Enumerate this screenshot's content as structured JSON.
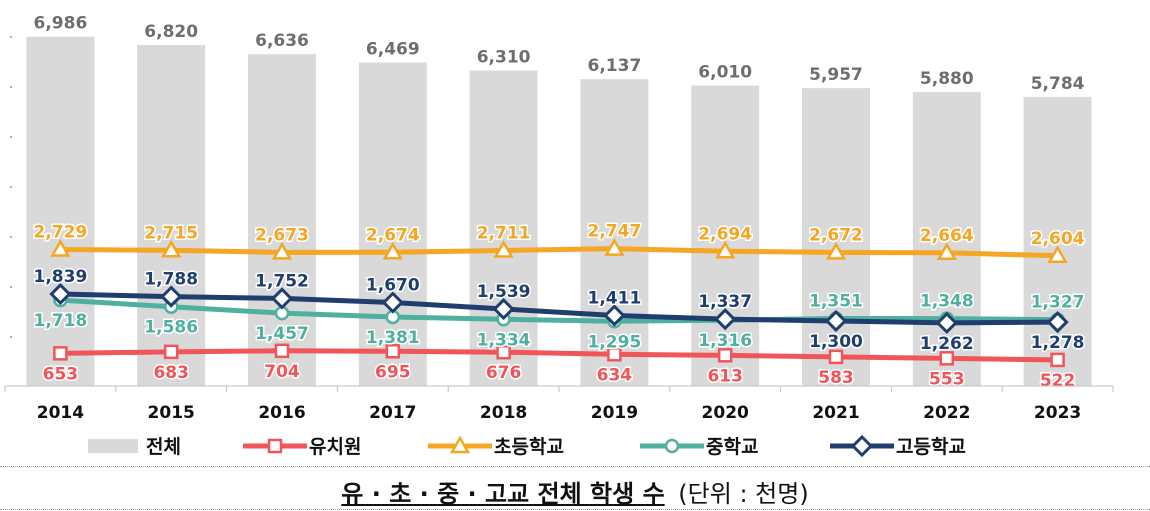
{
  "chart_data": {
    "type": "bar",
    "categories": [
      "2014",
      "2015",
      "2016",
      "2017",
      "2018",
      "2019",
      "2020",
      "2021",
      "2022",
      "2023"
    ],
    "bar_series": {
      "name": "전체",
      "values": [
        6986,
        6820,
        6636,
        6469,
        6310,
        6137,
        6010,
        5957,
        5880,
        5784
      ],
      "labels": [
        "6,986",
        "6,820",
        "6,636",
        "6,469",
        "6,310",
        "6,137",
        "6,010",
        "5,957",
        "5,880",
        "5,784"
      ],
      "color": "#d9d9d9",
      "label_color": "#6e6e6e"
    },
    "line_series": [
      {
        "name": "유치원",
        "values": [
          653,
          683,
          704,
          695,
          676,
          634,
          613,
          583,
          553,
          522
        ],
        "labels": [
          "653",
          "683",
          "704",
          "695",
          "676",
          "634",
          "613",
          "583",
          "553",
          "522"
        ],
        "color": "#f0555a",
        "marker": "square",
        "label_position": "below"
      },
      {
        "name": "초등학교",
        "values": [
          2729,
          2715,
          2673,
          2674,
          2711,
          2747,
          2694,
          2672,
          2664,
          2604
        ],
        "labels": [
          "2,729",
          "2,715",
          "2,673",
          "2,674",
          "2,711",
          "2,747",
          "2,694",
          "2,672",
          "2,664",
          "2,604"
        ],
        "color": "#f5a623",
        "marker": "triangle",
        "label_position": "above"
      },
      {
        "name": "중학교",
        "values": [
          1718,
          1586,
          1457,
          1381,
          1334,
          1295,
          1316,
          1351,
          1348,
          1327
        ],
        "labels": [
          "1,718",
          "1,586",
          "1,457",
          "1,381",
          "1,334",
          "1,295",
          "1,316",
          "1,351",
          "1,348",
          "1,327"
        ],
        "color": "#4fb0a0",
        "marker": "circle",
        "label_position": [
          "below",
          "below",
          "below",
          "below",
          "below",
          "below",
          "below",
          "above",
          "above",
          "above"
        ]
      },
      {
        "name": "고등학교",
        "values": [
          1839,
          1788,
          1752,
          1670,
          1539,
          1411,
          1337,
          1300,
          1262,
          1278
        ],
        "labels": [
          "1,839",
          "1,788",
          "1,752",
          "1,670",
          "1,539",
          "1,411",
          "1,337",
          "1,300",
          "1,262",
          "1,278"
        ],
        "color": "#1f3e6e",
        "marker": "diamond",
        "label_position": [
          "above",
          "above",
          "above",
          "above",
          "above",
          "above",
          "above",
          "below",
          "below",
          "below"
        ]
      }
    ],
    "ylim": [
      0,
      7200
    ],
    "legend_placement": "bottom",
    "grid": false
  },
  "caption": {
    "title": "유 · 초 · 중 · 고교 전체 학생 수",
    "unit": "(단위 : 천명)"
  }
}
